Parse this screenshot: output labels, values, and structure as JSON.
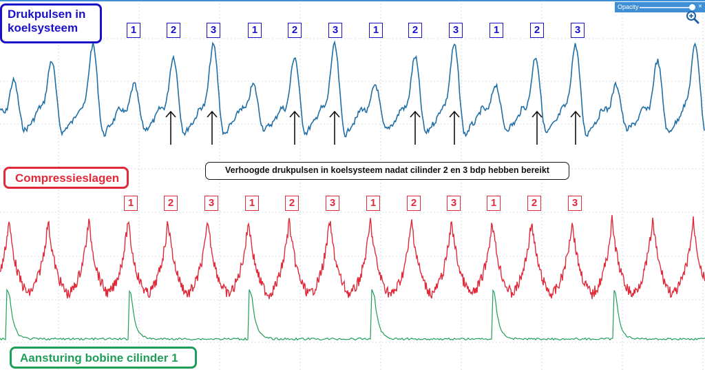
{
  "opacity_control": {
    "label": "Opacity",
    "close_glyph": "×",
    "value": 0.92
  },
  "labels": {
    "pressure": "Drukpulsen in koelsysteem",
    "compression": "Compressieslagen",
    "ignition": "Aansturing bobine cilinder 1",
    "annotation": "Verhoogde drukpulsen in koelsysteem nadat cilinder 2 en 3 bdp hebben bereikt"
  },
  "colors": {
    "pressure_trace": "#1f6ea6",
    "compression_trace": "#e02a3a",
    "ignition_trace": "#1f9e58",
    "pressure_box": "#1a10c8",
    "grid": "#c7d3de"
  },
  "cylinder_markers": {
    "pressure_row": [
      "1",
      "2",
      "3",
      "1",
      "2",
      "3",
      "1",
      "2",
      "3",
      "1",
      "2",
      "3"
    ],
    "compression_row": [
      "1",
      "2",
      "3",
      "1",
      "2",
      "3",
      "1",
      "2",
      "3",
      "1",
      "2",
      "3"
    ]
  },
  "chart_data": {
    "type": "line",
    "x_range": [
      0,
      1024
    ],
    "series": [
      {
        "name": "Drukpulsen in koelsysteem",
        "peak_times": [
          20,
          75,
          135,
          195,
          252,
          310,
          368,
          428,
          486,
          545,
          603,
          660,
          720,
          778,
          836,
          895,
          955,
          1010
        ],
        "peak_levels": [
          0.55,
          0.8,
          1.0,
          0.5,
          0.85,
          1.0,
          0.5,
          0.85,
          1.0,
          0.5,
          0.85,
          1.0,
          0.5,
          0.85,
          1.0,
          0.5,
          0.8,
          1.0
        ]
      },
      {
        "name": "Compressieslagen",
        "peak_times": [
          13,
          70,
          129,
          186,
          244,
          302,
          361,
          420,
          479,
          538,
          598,
          656,
          715,
          772,
          831,
          889,
          948,
          1007
        ]
      },
      {
        "name": "Aansturing bobine cilinder 1",
        "pulse_times": [
          10,
          187,
          362,
          540,
          715,
          891
        ]
      }
    ],
    "arrows_at": [
      248,
      308,
      428,
      486,
      603,
      660,
      780,
      836
    ]
  }
}
